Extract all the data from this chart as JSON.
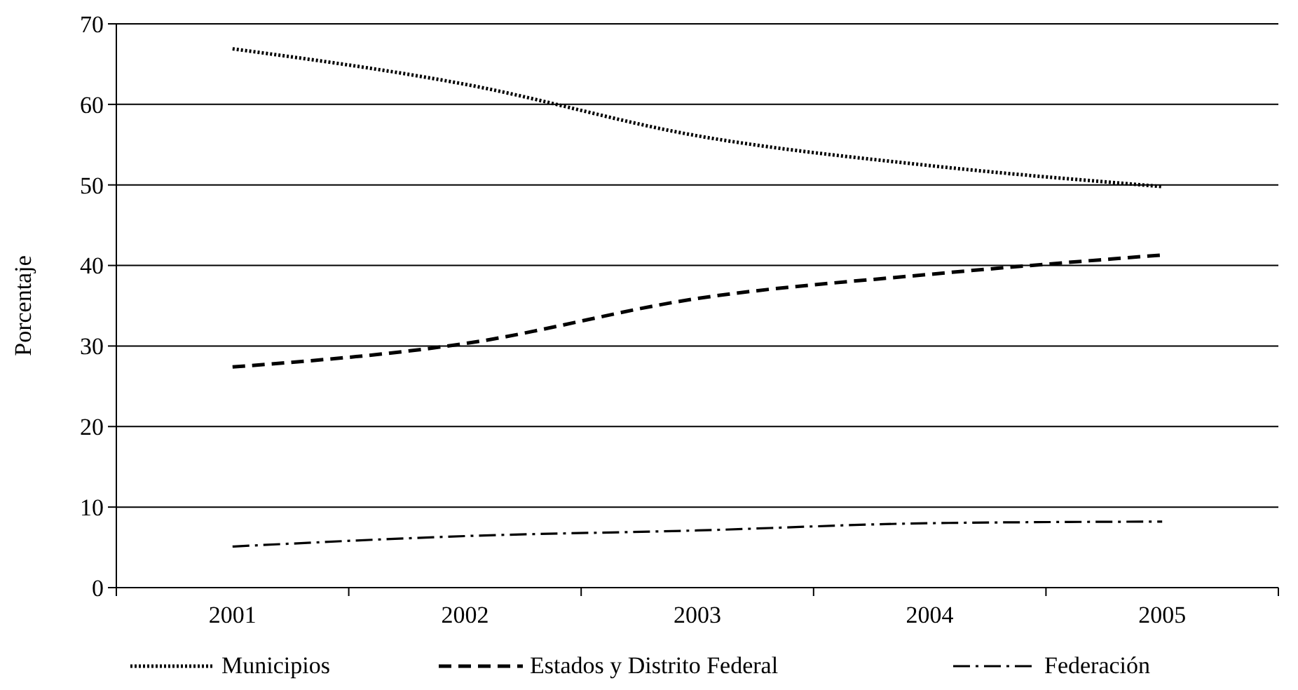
{
  "chart_data": {
    "type": "line",
    "ylabel": "Porcentaje",
    "categories": [
      "2001",
      "2002",
      "2003",
      "2004",
      "2005"
    ],
    "series": [
      {
        "name": "Municipios",
        "color": "#000000",
        "line_style": "dotted",
        "values": [
          66.9,
          62.5,
          56.1,
          52.4,
          49.8
        ]
      },
      {
        "name": "Estados y Distrito Federal",
        "color": "#000000",
        "line_style": "dashed",
        "values": [
          27.4,
          30.3,
          35.9,
          38.9,
          41.3
        ]
      },
      {
        "name": "Federación",
        "color": "#000000",
        "line_style": "dashdot",
        "values": [
          5.1,
          6.4,
          7.1,
          8.0,
          8.2
        ]
      }
    ],
    "ylim": [
      0,
      70
    ],
    "yticks": [
      0,
      10,
      20,
      30,
      40,
      50,
      60,
      70
    ],
    "grid": "y",
    "legend": "bottom",
    "marker": "none"
  }
}
